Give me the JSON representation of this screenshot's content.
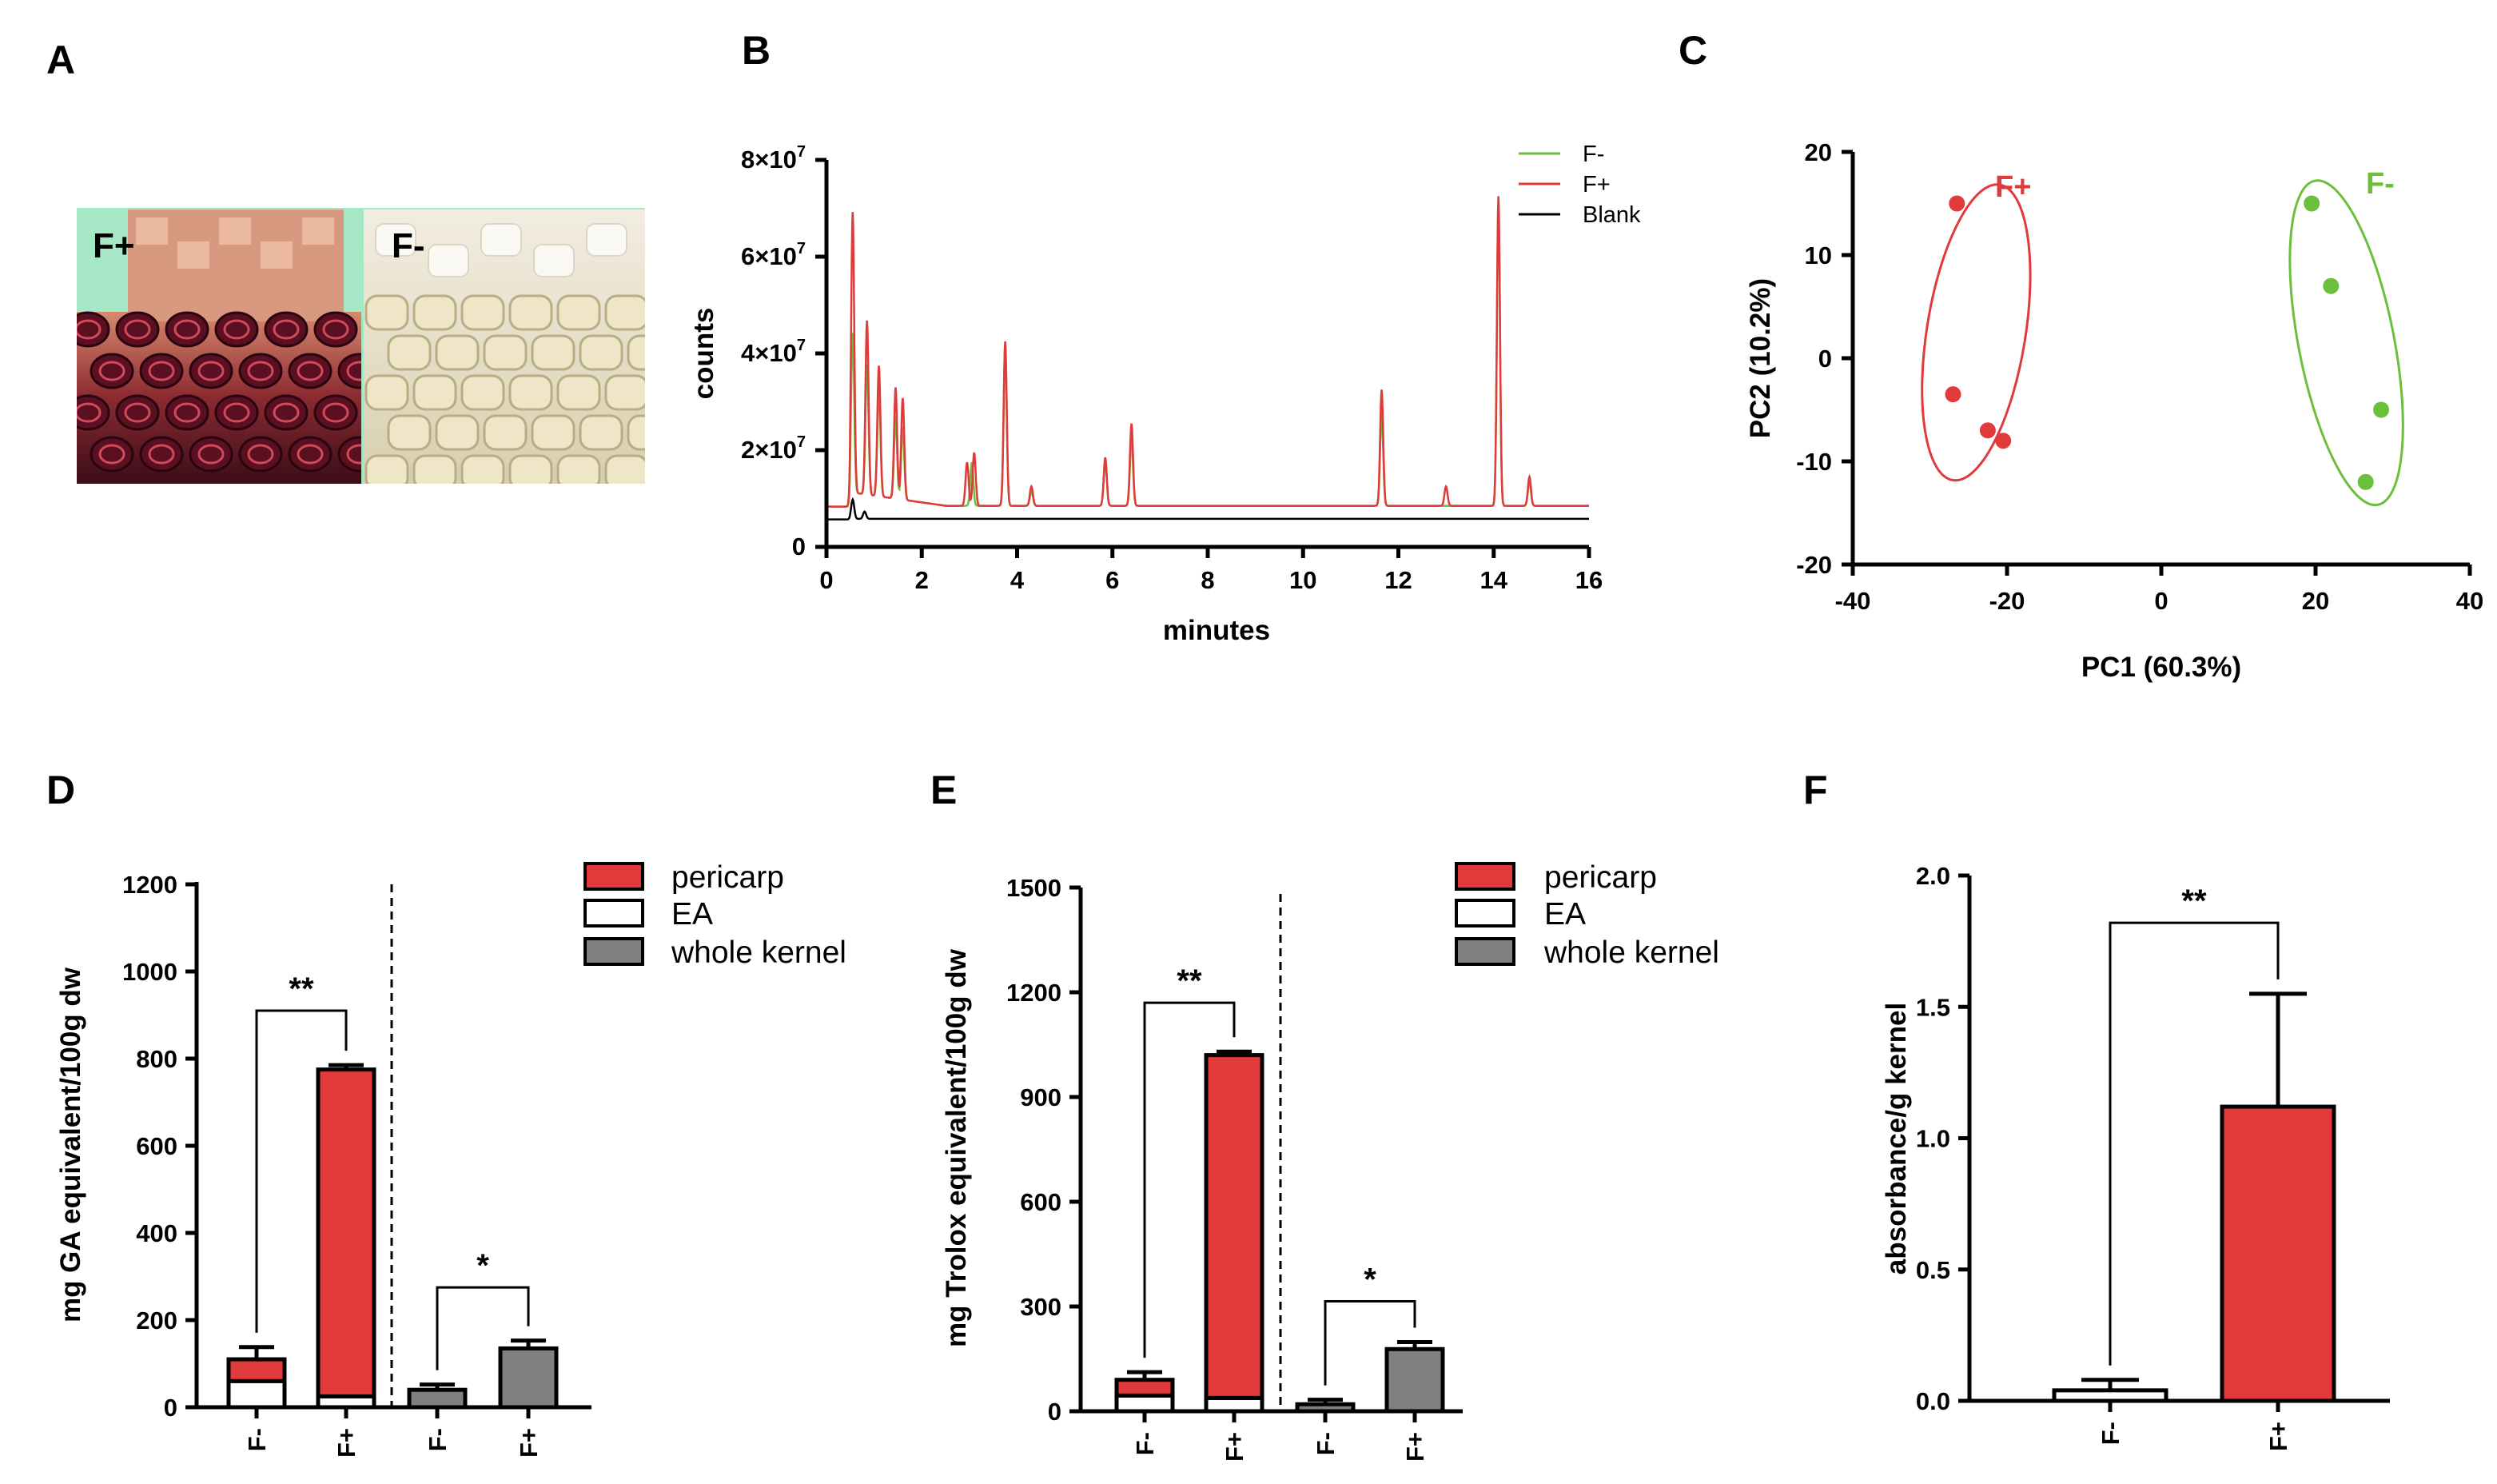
{
  "panel_labels": [
    "A",
    "B",
    "C",
    "D",
    "E",
    "F"
  ],
  "colors": {
    "red": "#e03a3a",
    "green": "#6cbf3a",
    "grey": "#808080",
    "black": "#000000",
    "photo_bg": "#a6e8c6"
  },
  "photo": {
    "left_label": "F+",
    "right_label": "F-"
  },
  "chart_data": [
    {
      "panel": "B",
      "type": "line",
      "xlabel": "minutes",
      "ylabel": "counts",
      "xlim": [
        0,
        16
      ],
      "ylim": [
        0,
        80000000
      ],
      "xticks": [
        "0",
        "2",
        "4",
        "6",
        "8",
        "10",
        "12",
        "14",
        "16"
      ],
      "yticks": [
        {
          "base": "0",
          "exp": ""
        },
        {
          "base": "2×10",
          "exp": "7"
        },
        {
          "base": "4×10",
          "exp": "7"
        },
        {
          "base": "6×10",
          "exp": "7"
        },
        {
          "base": "8×10",
          "exp": "7"
        }
      ],
      "legend": [
        "F-",
        "F+",
        "Blank"
      ],
      "legend_position": "top-right",
      "series": [
        {
          "name": "F-",
          "color": "#6cbf3a",
          "baseline": 8500000,
          "peaks": [
            [
              0.55,
              33000000
            ],
            [
              0.85,
              27000000
            ],
            [
              1.1,
              22000000
            ],
            [
              1.45,
              17000000
            ],
            [
              1.6,
              15000000
            ],
            [
              3.05,
              9000000
            ],
            [
              3.75,
              33000000
            ],
            [
              4.3,
              3000000
            ],
            [
              5.85,
              9000000
            ],
            [
              6.4,
              14000000
            ],
            [
              11.65,
              19000000
            ],
            [
              14.1,
              62000000
            ],
            [
              14.75,
              5000000
            ]
          ]
        },
        {
          "name": "F+",
          "color": "#e03a3a",
          "baseline": 8500000,
          "peaks": [
            [
              0.55,
              58000000
            ],
            [
              0.85,
              36000000
            ],
            [
              1.1,
              27000000
            ],
            [
              1.45,
              23000000
            ],
            [
              1.6,
              21000000
            ],
            [
              2.95,
              9000000
            ],
            [
              3.1,
              11000000
            ],
            [
              3.75,
              34000000
            ],
            [
              4.3,
              4000000
            ],
            [
              5.85,
              10000000
            ],
            [
              6.4,
              17000000
            ],
            [
              11.65,
              24000000
            ],
            [
              13.0,
              4000000
            ],
            [
              14.1,
              64000000
            ],
            [
              14.75,
              6000000
            ]
          ]
        },
        {
          "name": "Blank",
          "color": "#000000",
          "baseline": 5800000,
          "peaks": [
            [
              0.55,
              4000000
            ],
            [
              0.8,
              1500000
            ]
          ]
        }
      ]
    },
    {
      "panel": "C",
      "type": "scatter",
      "xlabel": "PC1 (60.3%)",
      "ylabel": "PC2 (10.2%)",
      "xlim": [
        -40,
        40
      ],
      "ylim": [
        -20,
        20
      ],
      "xticks": [
        "-40",
        "-20",
        "0",
        "20",
        "40"
      ],
      "yticks": [
        "-20",
        "-10",
        "0",
        "10",
        "20"
      ],
      "series": [
        {
          "name": "F+",
          "color": "#e03a3a",
          "points": [
            [
              -26.5,
              15
            ],
            [
              -27,
              -3.5
            ],
            [
              -22.5,
              -7
            ],
            [
              -20.5,
              -8
            ]
          ]
        },
        {
          "name": "F-",
          "color": "#6cbf3a",
          "points": [
            [
              19.5,
              15
            ],
            [
              22,
              7
            ],
            [
              28.5,
              -5
            ],
            [
              26.5,
              -12
            ]
          ]
        }
      ],
      "groups": [
        {
          "label": "F+",
          "color": "#e03a3a",
          "ellipse_center": [
            -24,
            2.5
          ],
          "ellipse_rx": 6.4,
          "ellipse_ry": 14.5,
          "ellipse_rot_deg": 9
        },
        {
          "label": "F-",
          "color": "#6cbf3a",
          "ellipse_center": [
            24,
            1.5
          ],
          "ellipse_rx": 6.2,
          "ellipse_ry": 16,
          "ellipse_rot_deg": -11
        }
      ]
    },
    {
      "panel": "D",
      "type": "bar",
      "ylabel": "mg GA equivalent/100g dw",
      "ylim": [
        0,
        1200
      ],
      "yticks": [
        "0",
        "200",
        "400",
        "600",
        "800",
        "1000",
        "1200"
      ],
      "categories": [
        "F-",
        "F+",
        "F-",
        "F+"
      ],
      "series": [
        {
          "name": "EA",
          "values": [
            60,
            25,
            null,
            null
          ],
          "color": "#ffffff"
        },
        {
          "name": "pericarp",
          "values": [
            50,
            750,
            null,
            null
          ],
          "color": "#e03a3a"
        },
        {
          "name": "whole kernel",
          "values": [
            null,
            null,
            40,
            135
          ],
          "color": "#808080"
        }
      ],
      "errors": [
        138,
        785,
        52,
        153
      ],
      "legend": [
        "pericarp",
        "EA",
        "whole kernel"
      ],
      "significance": [
        {
          "bars": [
            0,
            1
          ],
          "label": "**",
          "bracket_y": 910
        },
        {
          "bars": [
            2,
            3
          ],
          "label": "*",
          "bracket_y": 275
        }
      ]
    },
    {
      "panel": "E",
      "type": "bar",
      "ylabel": "mg Trolox equivalent/100g dw",
      "ylim": [
        0,
        1500
      ],
      "yticks": [
        "0",
        "300",
        "600",
        "900",
        "1200",
        "1500"
      ],
      "categories": [
        "F-",
        "F+",
        "F-",
        "F+"
      ],
      "series": [
        {
          "name": "EA",
          "values": [
            45,
            38,
            null,
            null
          ],
          "color": "#ffffff"
        },
        {
          "name": "pericarp",
          "values": [
            45,
            982,
            null,
            null
          ],
          "color": "#e03a3a"
        },
        {
          "name": "whole kernel",
          "values": [
            null,
            null,
            20,
            178
          ],
          "color": "#808080"
        }
      ],
      "errors": [
        112,
        1030,
        33,
        198
      ],
      "legend": [
        "pericarp",
        "EA",
        "whole kernel"
      ],
      "significance": [
        {
          "bars": [
            0,
            1
          ],
          "label": "**",
          "bracket_y": 1170
        },
        {
          "bars": [
            2,
            3
          ],
          "label": "*",
          "bracket_y": 315
        }
      ]
    },
    {
      "panel": "F",
      "type": "bar",
      "ylabel": "absorbance/g kernel",
      "ylim": [
        0,
        2.0
      ],
      "yticks": [
        "0.0",
        "0.5",
        "1.0",
        "1.5",
        "2.0"
      ],
      "categories": [
        "F-",
        "F+"
      ],
      "values": [
        0.04,
        1.12
      ],
      "errors": [
        0.08,
        1.55
      ],
      "colors": [
        "#ffffff",
        "#e03a3a"
      ],
      "significance": [
        {
          "bars": [
            0,
            1
          ],
          "label": "**",
          "bracket_y": 1.82
        }
      ]
    }
  ]
}
